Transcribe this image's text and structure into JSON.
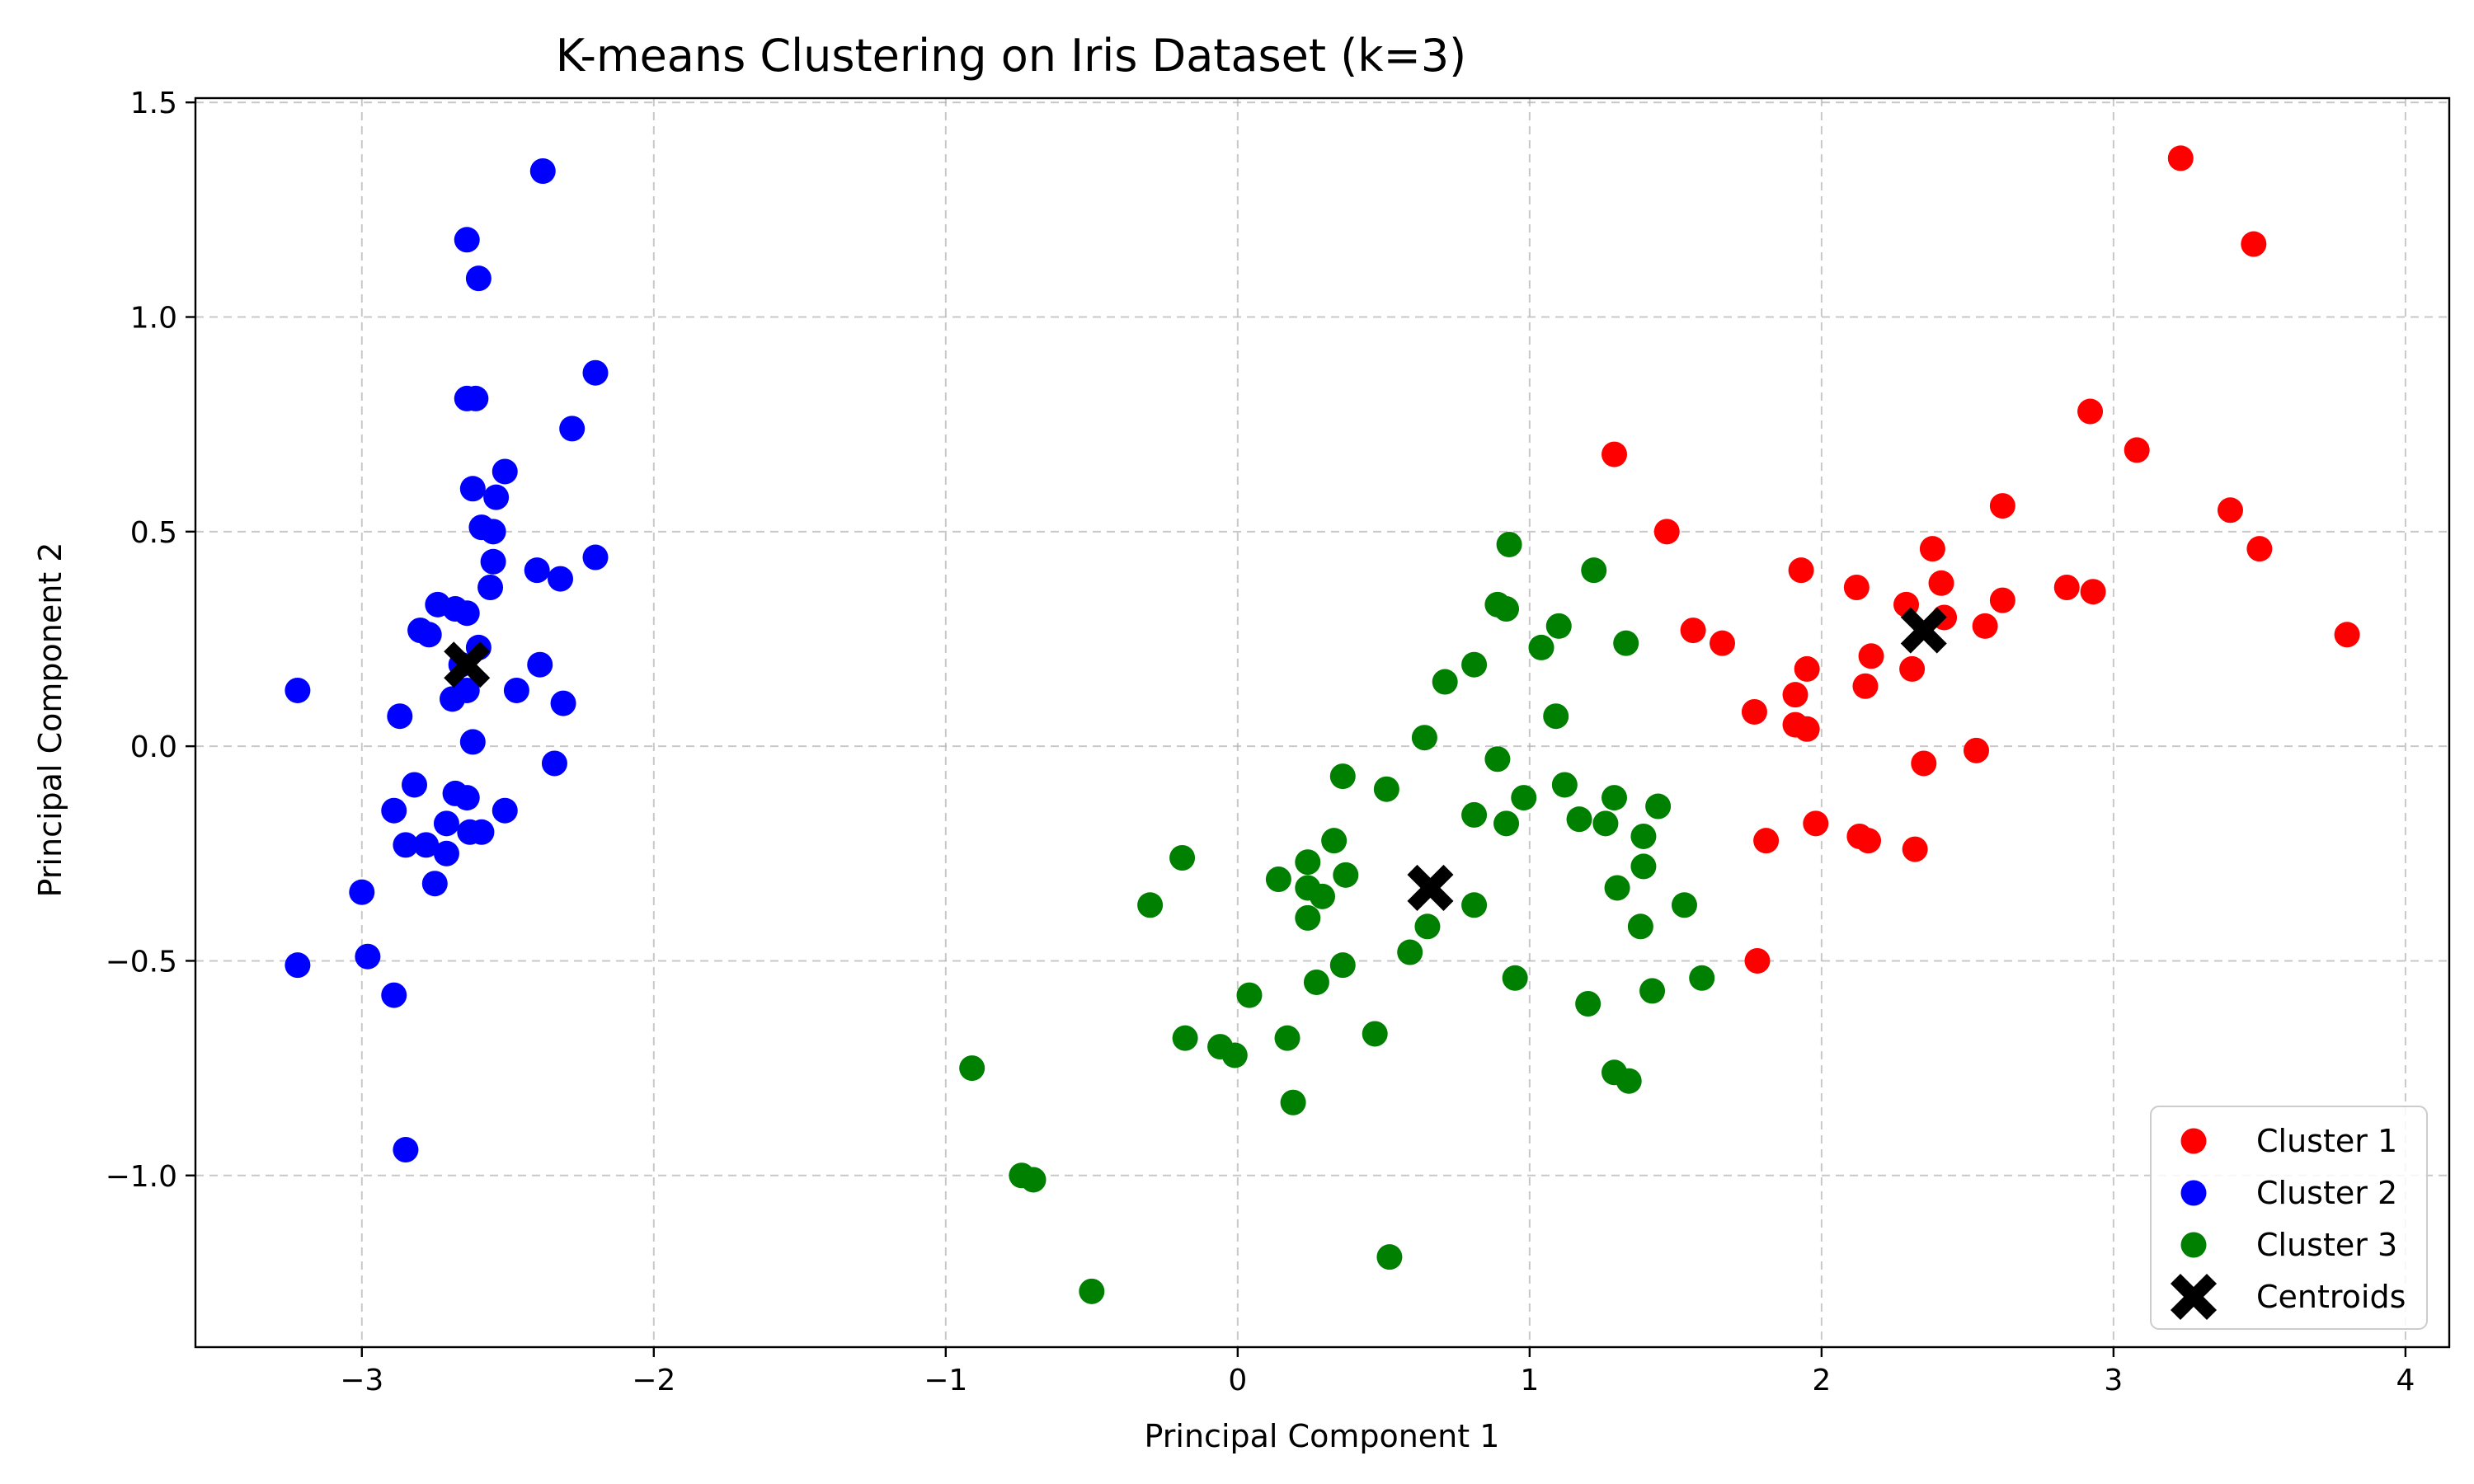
{
  "chart_data": {
    "type": "scatter",
    "title": "K-means Clustering on Iris Dataset (k=3)",
    "xlabel": "Principal Component 1",
    "ylabel": "Principal Component 2",
    "xlim": [
      -3.57,
      4.15
    ],
    "ylim": [
      -1.4,
      1.51
    ],
    "xticks": [
      -3,
      -2,
      -1,
      0,
      1,
      2,
      3,
      4
    ],
    "xtick_labels": [
      "−3",
      "−2",
      "−1",
      "0",
      "1",
      "2",
      "3",
      "4"
    ],
    "yticks": [
      -1.0,
      -0.5,
      0.0,
      0.5,
      1.0,
      1.5
    ],
    "ytick_labels": [
      "−1.0",
      "−0.5",
      "0.0",
      "0.5",
      "1.0",
      "1.5"
    ],
    "grid": true,
    "legend_position": "lower-right",
    "series": [
      {
        "name": "Cluster 1",
        "color": "#ff0000",
        "marker": "circle",
        "points": [
          [
            3.23,
            1.37
          ],
          [
            3.48,
            1.17
          ],
          [
            2.92,
            0.78
          ],
          [
            3.08,
            0.69
          ],
          [
            3.4,
            0.55
          ],
          [
            3.5,
            0.46
          ],
          [
            3.8,
            0.26
          ],
          [
            2.62,
            0.56
          ],
          [
            2.84,
            0.37
          ],
          [
            2.93,
            0.36
          ],
          [
            2.62,
            0.34
          ],
          [
            2.56,
            0.28
          ],
          [
            2.38,
            0.46
          ],
          [
            2.41,
            0.38
          ],
          [
            2.42,
            0.3
          ],
          [
            2.29,
            0.33
          ],
          [
            2.31,
            0.18
          ],
          [
            2.12,
            0.37
          ],
          [
            2.17,
            0.21
          ],
          [
            2.15,
            0.14
          ],
          [
            2.35,
            -0.04
          ],
          [
            2.53,
            -0.01
          ],
          [
            2.32,
            -0.24
          ],
          [
            2.13,
            -0.21
          ],
          [
            2.16,
            -0.22
          ],
          [
            1.29,
            0.68
          ],
          [
            1.47,
            0.5
          ],
          [
            1.56,
            0.27
          ],
          [
            1.66,
            0.24
          ],
          [
            1.77,
            0.08
          ],
          [
            1.93,
            0.41
          ],
          [
            1.95,
            0.18
          ],
          [
            1.91,
            0.12
          ],
          [
            1.91,
            0.05
          ],
          [
            1.95,
            0.04
          ],
          [
            1.81,
            -0.22
          ],
          [
            1.98,
            -0.18
          ],
          [
            1.78,
            -0.5
          ]
        ]
      },
      {
        "name": "Cluster 2",
        "color": "#0000ff",
        "marker": "circle",
        "points": [
          [
            -2.38,
            1.34
          ],
          [
            -2.64,
            1.18
          ],
          [
            -2.6,
            1.09
          ],
          [
            -2.2,
            0.87
          ],
          [
            -2.64,
            0.81
          ],
          [
            -2.61,
            0.81
          ],
          [
            -2.28,
            0.74
          ],
          [
            -2.51,
            0.64
          ],
          [
            -2.62,
            0.6
          ],
          [
            -2.54,
            0.58
          ],
          [
            -2.59,
            0.51
          ],
          [
            -2.55,
            0.5
          ],
          [
            -2.2,
            0.44
          ],
          [
            -2.55,
            0.43
          ],
          [
            -2.4,
            0.41
          ],
          [
            -2.32,
            0.39
          ],
          [
            -2.56,
            0.37
          ],
          [
            -2.74,
            0.33
          ],
          [
            -2.68,
            0.32
          ],
          [
            -2.64,
            0.31
          ],
          [
            -2.8,
            0.27
          ],
          [
            -2.77,
            0.26
          ],
          [
            -2.6,
            0.23
          ],
          [
            -2.66,
            0.19
          ],
          [
            -2.39,
            0.19
          ],
          [
            -2.69,
            0.11
          ],
          [
            -2.64,
            0.13
          ],
          [
            -2.47,
            0.13
          ],
          [
            -2.31,
            0.1
          ],
          [
            -2.87,
            0.07
          ],
          [
            -3.22,
            0.13
          ],
          [
            -2.62,
            0.01
          ],
          [
            -2.34,
            -0.04
          ],
          [
            -2.82,
            -0.09
          ],
          [
            -2.68,
            -0.11
          ],
          [
            -2.64,
            -0.12
          ],
          [
            -2.51,
            -0.15
          ],
          [
            -2.89,
            -0.15
          ],
          [
            -2.71,
            -0.18
          ],
          [
            -2.63,
            -0.2
          ],
          [
            -2.59,
            -0.2
          ],
          [
            -2.85,
            -0.23
          ],
          [
            -2.78,
            -0.23
          ],
          [
            -2.71,
            -0.25
          ],
          [
            -2.75,
            -0.32
          ],
          [
            -3.0,
            -0.34
          ],
          [
            -2.98,
            -0.49
          ],
          [
            -3.22,
            -0.51
          ],
          [
            -2.89,
            -0.58
          ],
          [
            -2.85,
            -0.94
          ]
        ]
      },
      {
        "name": "Cluster 3",
        "color": "#008000",
        "marker": "circle",
        "points": [
          [
            0.93,
            0.47
          ],
          [
            1.22,
            0.41
          ],
          [
            0.89,
            0.33
          ],
          [
            0.92,
            0.32
          ],
          [
            1.1,
            0.28
          ],
          [
            1.33,
            0.24
          ],
          [
            1.04,
            0.23
          ],
          [
            0.81,
            0.19
          ],
          [
            0.71,
            0.15
          ],
          [
            1.09,
            0.07
          ],
          [
            0.64,
            0.02
          ],
          [
            0.89,
            -0.03
          ],
          [
            0.36,
            -0.07
          ],
          [
            0.51,
            -0.1
          ],
          [
            1.12,
            -0.09
          ],
          [
            0.98,
            -0.12
          ],
          [
            1.29,
            -0.12
          ],
          [
            1.44,
            -0.14
          ],
          [
            0.81,
            -0.16
          ],
          [
            1.17,
            -0.17
          ],
          [
            0.92,
            -0.18
          ],
          [
            1.26,
            -0.18
          ],
          [
            1.39,
            -0.21
          ],
          [
            0.33,
            -0.22
          ],
          [
            0.24,
            -0.27
          ],
          [
            -0.19,
            -0.26
          ],
          [
            0.37,
            -0.3
          ],
          [
            1.39,
            -0.28
          ],
          [
            0.14,
            -0.31
          ],
          [
            0.24,
            -0.33
          ],
          [
            1.3,
            -0.33
          ],
          [
            0.29,
            -0.35
          ],
          [
            -0.3,
            -0.37
          ],
          [
            0.81,
            -0.37
          ],
          [
            1.53,
            -0.37
          ],
          [
            0.24,
            -0.4
          ],
          [
            0.65,
            -0.42
          ],
          [
            1.38,
            -0.42
          ],
          [
            0.59,
            -0.48
          ],
          [
            0.36,
            -0.51
          ],
          [
            0.95,
            -0.54
          ],
          [
            1.59,
            -0.54
          ],
          [
            0.27,
            -0.55
          ],
          [
            1.42,
            -0.57
          ],
          [
            0.04,
            -0.58
          ],
          [
            1.2,
            -0.6
          ],
          [
            0.47,
            -0.67
          ],
          [
            -0.18,
            -0.68
          ],
          [
            0.17,
            -0.68
          ],
          [
            -0.06,
            -0.7
          ],
          [
            -0.01,
            -0.72
          ],
          [
            -0.91,
            -0.75
          ],
          [
            1.29,
            -0.76
          ],
          [
            1.34,
            -0.78
          ],
          [
            0.19,
            -0.83
          ],
          [
            -0.74,
            -1.0
          ],
          [
            -0.7,
            -1.01
          ],
          [
            0.52,
            -1.19
          ],
          [
            -0.5,
            -1.27
          ]
        ]
      },
      {
        "name": "Centroids",
        "color": "#000000",
        "marker": "x",
        "points": [
          [
            2.35,
            0.27
          ],
          [
            -2.64,
            0.19
          ],
          [
            0.66,
            -0.33
          ]
        ]
      }
    ]
  }
}
